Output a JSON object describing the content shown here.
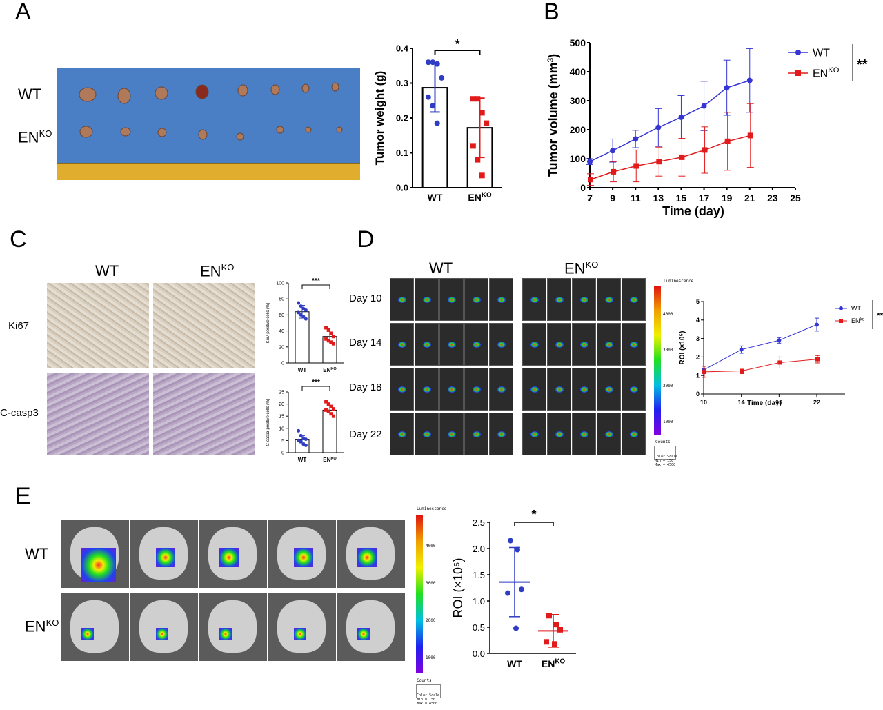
{
  "panels": {
    "A": "A",
    "B": "B",
    "C": "C",
    "D": "D",
    "E": "E"
  },
  "labels": {
    "wt": "WT",
    "en": "EN",
    "ko": "KO",
    "ko_lower": "ko",
    "ki67": "Ki67",
    "ccasp3": "C-casp3",
    "day10": "Day 10",
    "day14": "Day 14",
    "day18": "Day 18",
    "day22": "Day 22",
    "luminescence": "Luminescence",
    "counts": "Counts",
    "color_scale": "Color Scale",
    "min_max": "Min = 150\nMax = 4500"
  },
  "colorbar_ticks": [
    "4000",
    "3000",
    "2000",
    "1000"
  ],
  "chart_data": [
    {
      "id": "A-weight",
      "type": "bar",
      "categories": [
        "WT",
        "EN KO"
      ],
      "values": [
        0.287,
        0.172
      ],
      "sd": [
        0.07,
        0.085
      ],
      "points": [
        [
          0.36,
          0.36,
          0.355,
          0.315,
          0.26,
          0.235,
          0.185
        ],
        [
          0.255,
          0.255,
          0.215,
          0.185,
          0.12,
          0.08,
          0.035
        ]
      ],
      "colors": [
        "#2f3cc4",
        "#e11b1b"
      ],
      "ylabel": "Tumor weight (g)",
      "ylim": [
        0,
        0.4
      ],
      "yticks": [
        "0.0",
        "0.1",
        "0.2",
        "0.3",
        "0.4"
      ],
      "significance": "*"
    },
    {
      "id": "B-volume",
      "type": "line",
      "x": [
        7,
        9,
        11,
        13,
        15,
        17,
        19,
        21
      ],
      "series": [
        {
          "name": "WT",
          "color": "#3535d4",
          "values": [
            90,
            128,
            168,
            208,
            243,
            282,
            345,
            370
          ],
          "err": [
            10,
            40,
            30,
            65,
            75,
            85,
            95,
            110
          ]
        },
        {
          "name": "EN KO",
          "color": "#e11b1b",
          "values": [
            28,
            55,
            75,
            90,
            105,
            130,
            160,
            180
          ],
          "err": [
            20,
            35,
            55,
            50,
            65,
            80,
            100,
            110
          ]
        }
      ],
      "xlabel": "Time (day)",
      "ylabel": "Tumor volume (mm3)",
      "xlim": [
        7,
        25
      ],
      "ylim": [
        0,
        500
      ],
      "xticks": [
        "7",
        "9",
        "11",
        "13",
        "15",
        "17",
        "19",
        "21",
        "23",
        "25"
      ],
      "yticks": [
        "0",
        "100",
        "200",
        "300",
        "400",
        "500"
      ],
      "significance": "**"
    },
    {
      "id": "C-ki67",
      "type": "bar",
      "categories": [
        "WT",
        "EN KO"
      ],
      "values": [
        64,
        33
      ],
      "sd": [
        8,
        7
      ],
      "points": [
        [
          75,
          71,
          68,
          66,
          63,
          60,
          58,
          55
        ],
        [
          44,
          41,
          37,
          33,
          30,
          28,
          26,
          24
        ]
      ],
      "colors": [
        "#2f3cc4",
        "#e11b1b"
      ],
      "ylabel": "Ki67 positive cells (%)",
      "ylim": [
        0,
        100
      ],
      "yticks": [
        "0",
        "20",
        "40",
        "60",
        "80",
        "100"
      ],
      "significance": "***"
    },
    {
      "id": "C-casp3",
      "type": "bar",
      "categories": [
        "WT",
        "EN KO"
      ],
      "values": [
        5.5,
        17.5
      ],
      "sd": [
        1.5,
        2
      ],
      "points": [
        [
          9,
          7,
          6,
          5.5,
          5,
          4.5,
          3.5,
          3
        ],
        [
          21,
          20,
          19,
          18,
          17.5,
          17,
          16,
          15
        ]
      ],
      "colors": [
        "#2f3cc4",
        "#e11b1b"
      ],
      "ylabel": "C-casp3 positive cells (%)",
      "ylim": [
        0,
        25
      ],
      "yticks": [
        "0",
        "5",
        "10",
        "15",
        "20",
        "25"
      ],
      "significance": "***"
    },
    {
      "id": "D-roi",
      "type": "line",
      "x": [
        10,
        14,
        18,
        22
      ],
      "series": [
        {
          "name": "WT",
          "color": "#3535d4",
          "values": [
            1.3,
            2.4,
            2.9,
            3.75
          ],
          "err": [
            0.2,
            0.2,
            0.15,
            0.35
          ]
        },
        {
          "name": "EN ko",
          "color": "#e11b1b",
          "values": [
            1.2,
            1.25,
            1.7,
            1.88
          ],
          "err": [
            0.3,
            0.15,
            0.3,
            0.2
          ]
        }
      ],
      "xlabel": "Time (day)",
      "ylabel": "ROI (×10⁵)",
      "xlim": [
        10,
        25
      ],
      "ylim": [
        0,
        5
      ],
      "xticks": [
        "10",
        "14",
        "18",
        "22"
      ],
      "yticks": [
        "0",
        "1",
        "2",
        "3",
        "4",
        "5"
      ],
      "significance": "**"
    },
    {
      "id": "E-roi",
      "type": "scatter",
      "categories": [
        "WT",
        "EN KO"
      ],
      "means": [
        1.36,
        0.43
      ],
      "sd": [
        0.66,
        0.31
      ],
      "points": [
        [
          2.15,
          1.98,
          1.22,
          1.15,
          0.48
        ],
        [
          0.72,
          0.55,
          0.45,
          0.22,
          0.18
        ]
      ],
      "colors": [
        "#2f3cc4",
        "#e11b1b"
      ],
      "ylabel": "ROI (×10⁵)",
      "ylim": [
        0,
        2.5
      ],
      "yticks": [
        "0.0",
        "0.5",
        "1.0",
        "1.5",
        "2.0",
        "2.5"
      ],
      "significance": "*"
    }
  ]
}
